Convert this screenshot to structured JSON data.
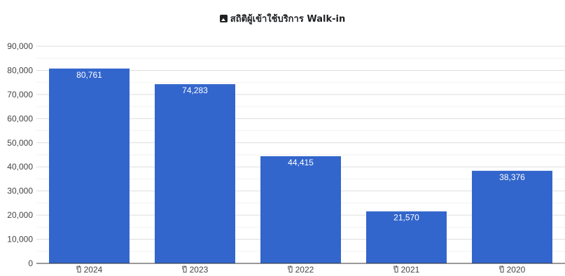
{
  "chart_data": {
    "type": "bar",
    "title": "สถิติผู้เข้าใช้บริการ Walk-in",
    "title_icon": "image-icon",
    "categories": [
      "ปี 2024",
      "ปี 2023",
      "ปี 2022",
      "ปี 2021",
      "ปี 2020"
    ],
    "values": [
      80761,
      74283,
      44415,
      21570,
      38376
    ],
    "value_labels": [
      "80,761",
      "74,283",
      "44,415",
      "21,570",
      "38,376"
    ],
    "ylim": [
      0,
      90000
    ],
    "yticks": [
      0,
      10000,
      20000,
      30000,
      40000,
      50000,
      60000,
      70000,
      80000,
      90000
    ],
    "ytick_labels": [
      "0",
      "10,000",
      "20,000",
      "30,000",
      "40,000",
      "50,000",
      "60,000",
      "70,000",
      "80,000",
      "90,000"
    ],
    "xlabel": "",
    "ylabel": "",
    "grid": true,
    "bar_color": "#3366cc",
    "legend": "none"
  }
}
